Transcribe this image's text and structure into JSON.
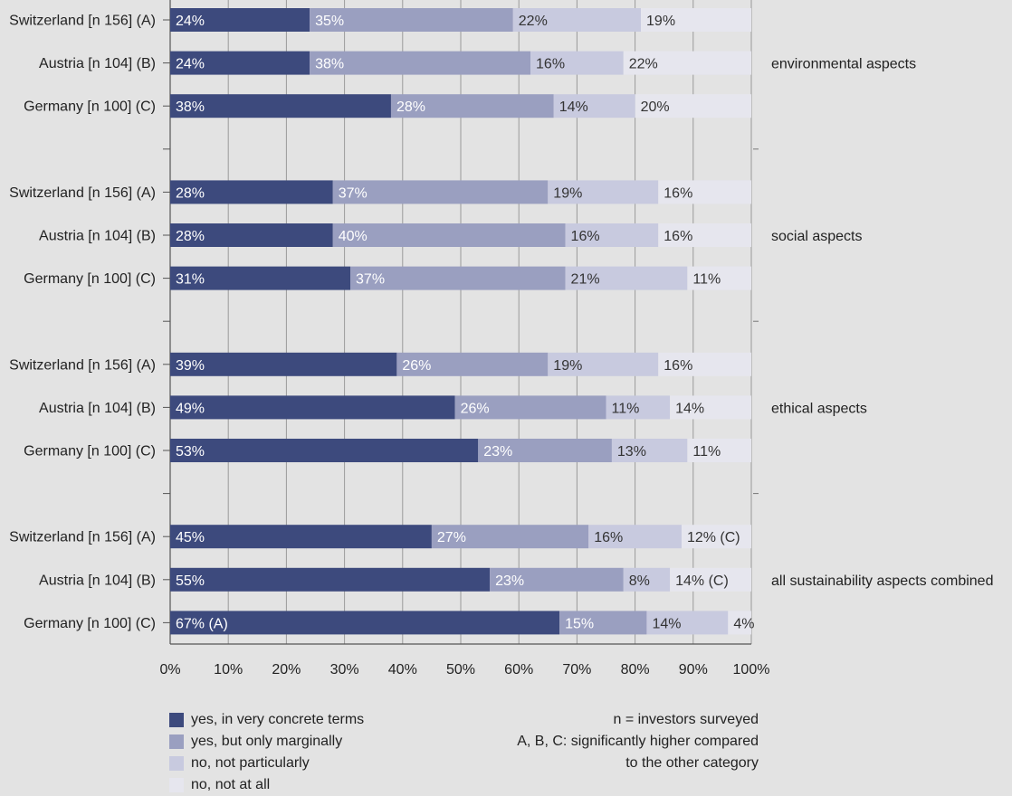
{
  "chart_data": {
    "type": "bar",
    "orientation": "horizontal",
    "stacked": true,
    "xlim": [
      0,
      100
    ],
    "x_ticks": [
      "0%",
      "10%",
      "20%",
      "30%",
      "40%",
      "50%",
      "60%",
      "70%",
      "80%",
      "90%",
      "100%"
    ],
    "grid": "vertical",
    "legend_position": "bottom-left",
    "colors": [
      "#3d4a7d",
      "#9a9fc0",
      "#c8cadf",
      "#e6e6ee"
    ],
    "series": [
      {
        "name": "yes, in very concrete terms"
      },
      {
        "name": "yes, but only marginally"
      },
      {
        "name": "no, not particularly"
      },
      {
        "name": "no, not at all"
      }
    ],
    "groups": [
      {
        "name": "environmental aspects",
        "rows": [
          {
            "label": "Switzerland [n 156] (A)",
            "values": [
              24,
              35,
              22,
              19
            ],
            "labels": [
              "24%",
              "35%",
              "22%",
              "19%"
            ]
          },
          {
            "label": "Austria [n 104] (B)",
            "values": [
              24,
              38,
              16,
              22
            ],
            "labels": [
              "24%",
              "38%",
              "16%",
              "22%"
            ]
          },
          {
            "label": "Germany [n 100] (C)",
            "values": [
              38,
              28,
              14,
              20
            ],
            "labels": [
              "38%",
              "28%",
              "14%",
              "20%"
            ]
          }
        ]
      },
      {
        "name": "social aspects",
        "rows": [
          {
            "label": "Switzerland [n 156] (A)",
            "values": [
              28,
              37,
              19,
              16
            ],
            "labels": [
              "28%",
              "37%",
              "19%",
              "16%"
            ]
          },
          {
            "label": "Austria [n 104] (B)",
            "values": [
              28,
              40,
              16,
              16
            ],
            "labels": [
              "28%",
              "40%",
              "16%",
              "16%"
            ]
          },
          {
            "label": "Germany [n 100] (C)",
            "values": [
              31,
              37,
              21,
              11
            ],
            "labels": [
              "31%",
              "37%",
              "21%",
              "11%"
            ]
          }
        ]
      },
      {
        "name": "ethical aspects",
        "rows": [
          {
            "label": "Switzerland [n 156] (A)",
            "values": [
              39,
              26,
              19,
              16
            ],
            "labels": [
              "39%",
              "26%",
              "19%",
              "16%"
            ]
          },
          {
            "label": "Austria [n 104] (B)",
            "values": [
              49,
              26,
              11,
              14
            ],
            "labels": [
              "49%",
              "26%",
              "11%",
              "14%"
            ]
          },
          {
            "label": "Germany [n 100] (C)",
            "values": [
              53,
              23,
              13,
              11
            ],
            "labels": [
              "53%",
              "23%",
              "13%",
              "11%"
            ]
          }
        ]
      },
      {
        "name": "all sustainability aspects combined",
        "rows": [
          {
            "label": "Switzerland [n 156] (A)",
            "values": [
              45,
              27,
              16,
              12
            ],
            "labels": [
              "45%",
              "27%",
              "16%",
              "12% (C)"
            ]
          },
          {
            "label": "Austria [n 104] (B)",
            "values": [
              55,
              23,
              8,
              14
            ],
            "labels": [
              "55%",
              "23%",
              "8%",
              "14% (C)"
            ]
          },
          {
            "label": "Germany [n 100] (C)",
            "values": [
              67,
              15,
              14,
              4
            ],
            "labels": [
              "67% (A)",
              "15%",
              "14%",
              "4%"
            ]
          }
        ]
      }
    ]
  },
  "notes": [
    "n = investors surveyed",
    "A, B, C: significantly higher compared",
    "to the other category"
  ]
}
